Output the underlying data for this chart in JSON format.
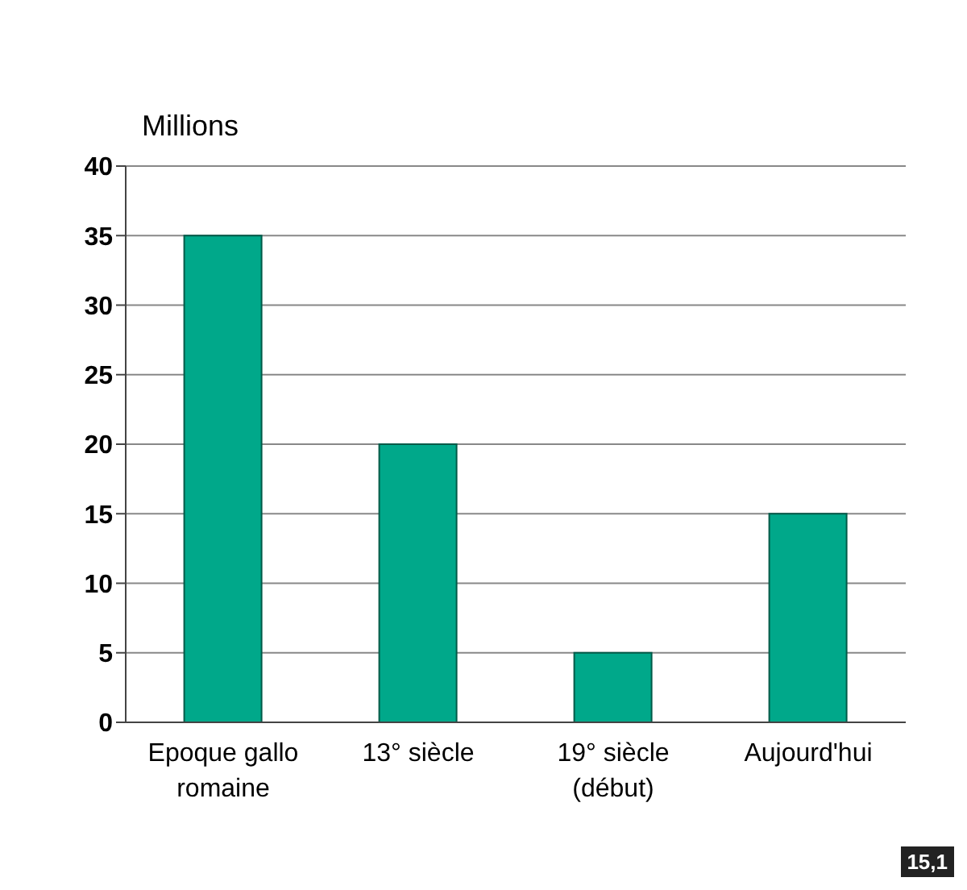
{
  "chart_data": {
    "type": "bar",
    "ylabel": "Millions",
    "categories": [
      "Epoque gallo romaine",
      "13° siècle",
      "19° siècle (début)",
      "Aujourd'hui"
    ],
    "values": [
      35,
      20,
      5,
      15
    ],
    "color": "#00a88a",
    "ylim": [
      0,
      40
    ],
    "yticks": [
      0,
      5,
      10,
      15,
      20,
      25,
      30,
      35,
      40
    ],
    "grid": "y",
    "annotations": [
      "15,1"
    ]
  }
}
